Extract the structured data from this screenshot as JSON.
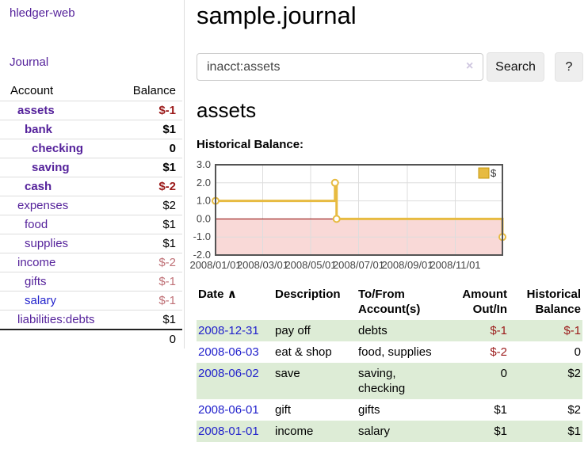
{
  "colors": {
    "link_purple": "#55229b",
    "link_blue": "#2222cc",
    "negative_strong": "#9b1a1a",
    "negative_muted": "#bf7076",
    "row_stripe_green": "#ddecd6",
    "button_bg": "#eeeeee"
  },
  "sidebar": {
    "app_title": "hledger-web",
    "journal_label": "Journal",
    "accounts_table": {
      "headers": {
        "account": "Account",
        "balance": "Balance"
      },
      "rows": [
        {
          "name": "assets",
          "balance": "$-1"
        },
        {
          "name": "bank",
          "balance": "$1"
        },
        {
          "name": "checking",
          "balance": "0"
        },
        {
          "name": "saving",
          "balance": "$1"
        },
        {
          "name": "cash",
          "balance": "$-2"
        },
        {
          "name": "expenses",
          "balance": "$2"
        },
        {
          "name": "food",
          "balance": "$1"
        },
        {
          "name": "supplies",
          "balance": "$1"
        },
        {
          "name": "income",
          "balance": "$-2"
        },
        {
          "name": "gifts",
          "balance": "$-1"
        },
        {
          "name": "salary",
          "balance": "$-1"
        },
        {
          "name": "liabilities:debts",
          "balance": "$1"
        }
      ],
      "total": "0"
    }
  },
  "main": {
    "page_title": "sample.journal",
    "search": {
      "value": "inacct:assets",
      "clear_icon": "×",
      "button_label": "Search",
      "help_label": "?"
    },
    "account_heading": "assets",
    "chart_heading": "Historical Balance:"
  },
  "chart_data": {
    "type": "line",
    "title": "Historical Balance:",
    "series": [
      {
        "name": "$",
        "step": true,
        "points": [
          [
            "2008-01-01",
            1
          ],
          [
            "2008-06-01",
            2
          ],
          [
            "2008-06-03",
            0
          ],
          [
            "2008-12-31",
            -1
          ]
        ]
      }
    ],
    "xlim": [
      "2008-01-01",
      "2008-12-31"
    ],
    "ylim": [
      -2,
      3
    ],
    "yticks": [
      3,
      2,
      1,
      0,
      -1,
      -2
    ],
    "ytick_labels": [
      "3.0",
      "2.0",
      "1.0",
      "0.0",
      "-1.0",
      "-2.0"
    ],
    "xticks": [
      "2008-01-01",
      "2008-03-01",
      "2008-05-01",
      "2008-07-01",
      "2008-09-01",
      "2008-11-01"
    ],
    "xtick_labels": [
      "2008/01/01",
      "2008/03/01",
      "2008/05/01",
      "2008/07/01",
      "2008/09/01",
      "2008/11/01"
    ],
    "legend": {
      "label": "$",
      "position": "top-right"
    },
    "grid": true,
    "negative_region_shaded": true,
    "colors": {
      "line": "#e7bb41",
      "legend_border": "#c79a10",
      "marker_fill": "#ffffff",
      "negative_region": "#f9d9d7",
      "zero_line": "#8b0000",
      "grid": "#dddddd",
      "border": "#545454",
      "tick_text": "#444444"
    }
  },
  "register_table": {
    "headers": {
      "date": "Date",
      "sort_indicator": "∧",
      "description": "Description",
      "accounts": "To/From Account(s)",
      "amount": "Amount Out/In",
      "balance": "Historical Balance"
    },
    "rows": [
      {
        "date": "2008-12-31",
        "description": "pay off",
        "accounts": "debts",
        "amount": "$-1",
        "balance": "$-1"
      },
      {
        "date": "2008-06-03",
        "description": "eat & shop",
        "accounts": "food, supplies",
        "amount": "$-2",
        "balance": "0"
      },
      {
        "date": "2008-06-02",
        "description": "save",
        "accounts": "saving, checking",
        "amount": "0",
        "balance": "$2"
      },
      {
        "date": "2008-06-01",
        "description": "gift",
        "accounts": "gifts",
        "amount": "$1",
        "balance": "$2"
      },
      {
        "date": "2008-01-01",
        "description": "income",
        "accounts": "salary",
        "amount": "$1",
        "balance": "$1"
      }
    ]
  }
}
